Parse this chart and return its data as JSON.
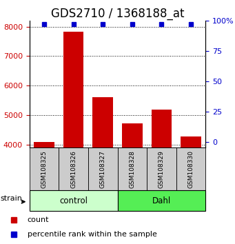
{
  "title": "GDS2710 / 1368188_at",
  "samples": [
    "GSM108325",
    "GSM108326",
    "GSM108327",
    "GSM108328",
    "GSM108329",
    "GSM108330"
  ],
  "counts": [
    4100,
    7830,
    5620,
    4720,
    5180,
    4280
  ],
  "percentiles": [
    97,
    97,
    97,
    97,
    97,
    97
  ],
  "ylim_left": [
    3900,
    8200
  ],
  "yticks_left": [
    4000,
    5000,
    6000,
    7000,
    8000
  ],
  "ylim_right": [
    -4.76,
    100
  ],
  "yticks_right": [
    0,
    25,
    50,
    75,
    100
  ],
  "bar_color": "#cc0000",
  "percentile_color": "#0000cc",
  "groups": [
    {
      "label": "control",
      "indices": [
        0,
        1,
        2
      ],
      "color": "#ccffcc"
    },
    {
      "label": "Dahl",
      "indices": [
        3,
        4,
        5
      ],
      "color": "#55ee55"
    }
  ],
  "strain_label": "strain",
  "legend_count_label": "count",
  "legend_percentile_label": "percentile rank within the sample",
  "sample_box_color": "#cccccc",
  "title_fontsize": 12,
  "tick_fontsize": 8,
  "tick_color_left": "#cc0000",
  "tick_color_right": "#0000cc",
  "bar_width": 0.7
}
